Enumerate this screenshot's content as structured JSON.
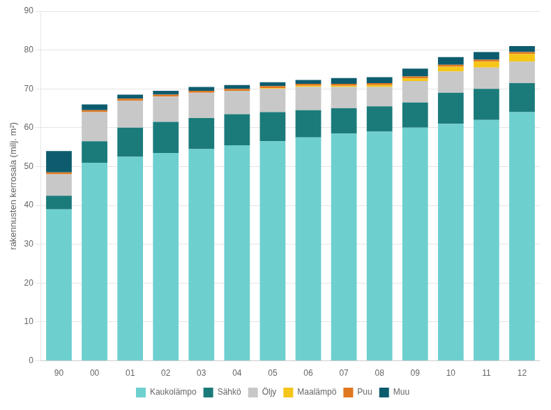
{
  "chart_data": {
    "type": "bar",
    "stacked": true,
    "categories": [
      "90",
      "00",
      "01",
      "02",
      "03",
      "04",
      "05",
      "06",
      "07",
      "08",
      "09",
      "10",
      "11",
      "12"
    ],
    "series": [
      {
        "name": "Kaukolämpo",
        "color": "#6ECFCF",
        "values": [
          39.0,
          51.0,
          52.5,
          53.5,
          54.5,
          55.5,
          56.5,
          57.5,
          58.5,
          59.0,
          60.0,
          61.0,
          62.0,
          64.0
        ]
      },
      {
        "name": "Sähkö",
        "color": "#1B7B7B",
        "values": [
          3.5,
          5.5,
          7.5,
          8.0,
          8.0,
          8.0,
          7.5,
          7.0,
          6.5,
          6.5,
          6.5,
          8.0,
          8.0,
          7.5
        ]
      },
      {
        "name": "Öljy",
        "color": "#C8C8C8",
        "values": [
          5.5,
          7.5,
          7.0,
          6.5,
          6.5,
          6.0,
          6.0,
          6.0,
          5.5,
          5.0,
          5.5,
          5.5,
          5.5,
          5.5
        ]
      },
      {
        "name": "Maalämpö",
        "color": "#F5C518",
        "values": [
          0.0,
          0.0,
          0.0,
          0.0,
          0.0,
          0.0,
          0.2,
          0.3,
          0.3,
          0.5,
          0.7,
          1.2,
          1.5,
          2.0
        ]
      },
      {
        "name": "Puu",
        "color": "#E07820",
        "values": [
          0.5,
          0.5,
          0.5,
          0.5,
          0.5,
          0.5,
          0.5,
          0.5,
          0.5,
          0.5,
          0.5,
          0.5,
          0.5,
          0.5
        ]
      },
      {
        "name": "Muu",
        "color": "#0D5C6E",
        "values": [
          5.5,
          1.5,
          1.0,
          1.0,
          1.0,
          1.0,
          1.0,
          1.0,
          1.5,
          1.5,
          2.0,
          2.0,
          2.0,
          1.5
        ]
      }
    ],
    "ylabel": "rakennusten kerrosala (milj. m²)",
    "ylim": [
      0,
      90
    ],
    "yticks": [
      0,
      10,
      20,
      30,
      40,
      50,
      60,
      70,
      80,
      90
    ],
    "grid": true,
    "legend": "bottom"
  }
}
